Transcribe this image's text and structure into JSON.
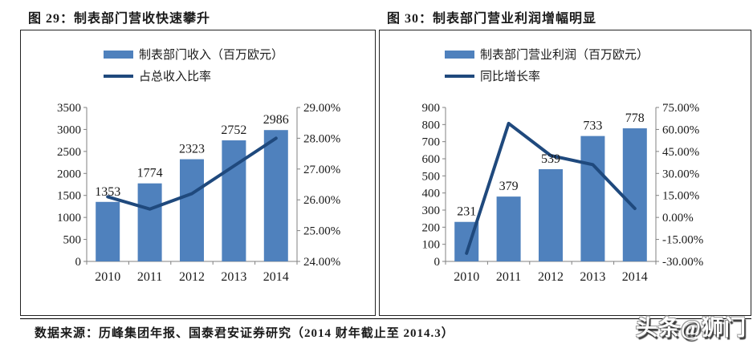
{
  "figure": {
    "source": "数据来源：历峰集团年报、国泰君安证券研究（2014 财年截止至 2014.3）",
    "watermark": "头条@狮门"
  },
  "colors": {
    "bar": "#4F81BD",
    "line": "#1F497D",
    "axis": "#808080",
    "text": "#1A1A1A"
  },
  "chart_data": [
    {
      "type": "bar+line",
      "title": "图 29：制表部门营收快速攀升",
      "categories": [
        "2010",
        "2011",
        "2012",
        "2013",
        "2014"
      ],
      "bar_series": {
        "name": "制表部门收入（百万欧元）",
        "values": [
          1353,
          1774,
          2323,
          2752,
          2986
        ],
        "axis": "left"
      },
      "line_series": {
        "name": "占总收入比率",
        "values_pct": [
          26.1,
          25.7,
          26.2,
          27.1,
          28.0
        ],
        "axis": "right"
      },
      "left_axis": {
        "min": 0,
        "max": 3500,
        "step": 500,
        "ticks": [
          "3500",
          "3000",
          "2500",
          "2000",
          "1500",
          "1000",
          "500",
          "0"
        ]
      },
      "right_axis": {
        "min": 24,
        "max": 29,
        "step": 1,
        "ticks": [
          "29.00%",
          "28.00%",
          "27.00%",
          "26.00%",
          "25.00%",
          "24.00%"
        ]
      },
      "legend_position": "top-left-inside",
      "grid": false
    },
    {
      "type": "bar+line",
      "title": "图 30：制表部门营业利润增幅明显",
      "categories": [
        "2010",
        "2011",
        "2012",
        "2013",
        "2014"
      ],
      "bar_series": {
        "name": "制表部门营业利润（百万欧元）",
        "values": [
          231,
          379,
          539,
          733,
          778
        ],
        "axis": "left"
      },
      "line_series": {
        "name": "同比增长率",
        "values_pct": [
          -24.5,
          64.1,
          42.2,
          36.0,
          6.1
        ],
        "axis": "right"
      },
      "left_axis": {
        "min": 0,
        "max": 900,
        "step": 100,
        "ticks": [
          "900",
          "800",
          "700",
          "600",
          "500",
          "400",
          "300",
          "200",
          "100",
          "0"
        ]
      },
      "right_axis": {
        "min": -30,
        "max": 75,
        "step": 15,
        "ticks": [
          "75.00%",
          "60.00%",
          "45.00%",
          "30.00%",
          "15.00%",
          "0.00%",
          "-15.00%",
          "-30.00%"
        ]
      },
      "legend_position": "top-left-inside",
      "grid": false
    }
  ]
}
